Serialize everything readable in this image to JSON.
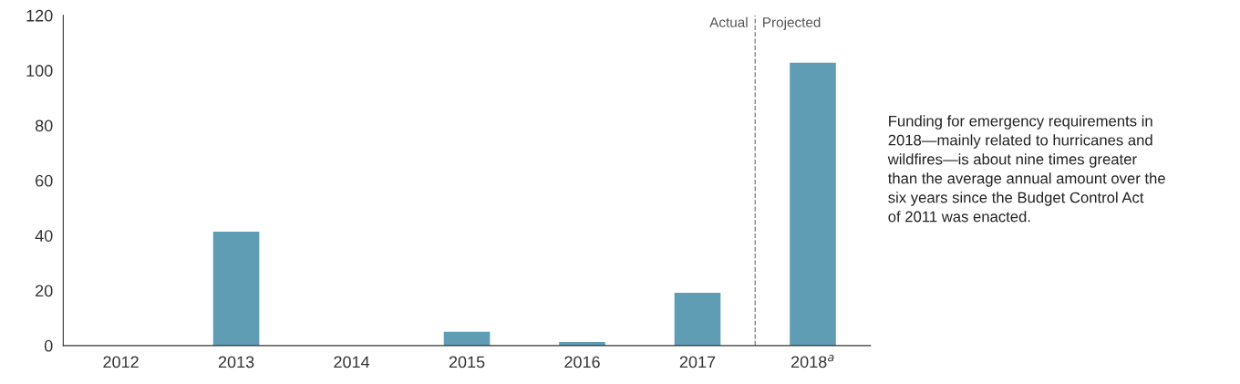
{
  "chart_data": {
    "type": "bar",
    "categories": [
      "2012",
      "2013",
      "2014",
      "2015",
      "2016",
      "2017",
      "2018$^{a}$"
    ],
    "values": [
      0,
      41.4,
      0,
      5,
      1.3,
      19.2,
      102.8
    ],
    "color": "#5f9db5",
    "ylim": [
      0,
      120
    ],
    "yticks": [
      0,
      20,
      40,
      60,
      80,
      100,
      120
    ],
    "grid": false,
    "annotations": [
      "Actual",
      "Projected",
      "Funding for emergency requirements in\n2018—mainly related to hurricanes and\nwildfires—is about nine times greater\nthan the average annual amount over the\nsix years since the Budget Control Act\nof 2011 was enacted."
    ]
  }
}
